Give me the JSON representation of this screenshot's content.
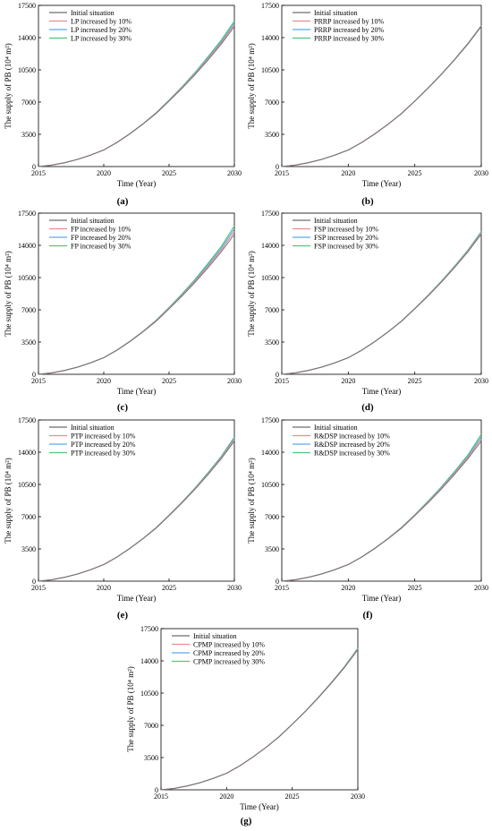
{
  "colors": {
    "initial": "#6e6e6e",
    "inc10": "#f08a8a",
    "inc20": "#5aa6f0",
    "inc30": "#4ccb72"
  },
  "chart_data": [
    {
      "type": "line",
      "panel": "(a)",
      "xlabel": "Time (Year)",
      "ylabel": "The supply of PB (10⁴ m²)",
      "xlim": [
        2015,
        2030
      ],
      "ylim": [
        0,
        17500
      ],
      "xticks": [
        2015,
        2020,
        2025,
        2030
      ],
      "yticks": [
        0,
        3500,
        7000,
        10500,
        14000,
        17500
      ],
      "legend_position": "top-left",
      "grid": false,
      "x": [
        2015,
        2016,
        2017,
        2018,
        2019,
        2020,
        2021,
        2022,
        2023,
        2024,
        2025,
        2026,
        2027,
        2028,
        2029,
        2030
      ],
      "series": [
        {
          "name": "Initial situation",
          "values": [
            0,
            150,
            420,
            780,
            1250,
            1800,
            2600,
            3550,
            4600,
            5750,
            7100,
            8500,
            10000,
            11600,
            13300,
            15200
          ]
        },
        {
          "name": "LP increased by 10%",
          "values": [
            0,
            150,
            420,
            780,
            1250,
            1800,
            2600,
            3560,
            4620,
            5780,
            7140,
            8560,
            10080,
            11720,
            13450,
            15400
          ]
        },
        {
          "name": "LP increased by 20%",
          "values": [
            0,
            150,
            420,
            780,
            1250,
            1800,
            2610,
            3570,
            4640,
            5810,
            7180,
            8620,
            10160,
            11840,
            13600,
            15600
          ]
        },
        {
          "name": "LP increased by 30%",
          "values": [
            0,
            150,
            420,
            780,
            1250,
            1810,
            2620,
            3580,
            4660,
            5840,
            7220,
            8680,
            10240,
            11960,
            13750,
            15800
          ]
        }
      ]
    },
    {
      "type": "line",
      "panel": "(b)",
      "xlabel": "Time (Year)",
      "ylabel": "The supply of PB (10⁴ m²)",
      "xlim": [
        2015,
        2030
      ],
      "ylim": [
        0,
        17500
      ],
      "xticks": [
        2015,
        2020,
        2025,
        2030
      ],
      "yticks": [
        0,
        3500,
        7000,
        10500,
        14000,
        17500
      ],
      "legend_position": "top-left",
      "grid": false,
      "x": [
        2015,
        2016,
        2017,
        2018,
        2019,
        2020,
        2021,
        2022,
        2023,
        2024,
        2025,
        2026,
        2027,
        2028,
        2029,
        2030
      ],
      "series": [
        {
          "name": "Initial situation",
          "values": [
            0,
            150,
            420,
            780,
            1250,
            1800,
            2600,
            3550,
            4600,
            5750,
            7100,
            8500,
            10000,
            11600,
            13300,
            15200
          ]
        },
        {
          "name": "PRRP increased by 10%",
          "values": [
            0,
            150,
            420,
            780,
            1250,
            1800,
            2600,
            3550,
            4600,
            5755,
            7105,
            8510,
            10015,
            11620,
            13330,
            15240
          ]
        },
        {
          "name": "PRRP increased by 20%",
          "values": [
            0,
            150,
            420,
            780,
            1250,
            1800,
            2600,
            3555,
            4605,
            5760,
            7110,
            8520,
            10030,
            11640,
            13360,
            15280
          ]
        },
        {
          "name": "PRRP increased by 30%",
          "values": [
            0,
            150,
            420,
            780,
            1250,
            1800,
            2605,
            3560,
            4610,
            5765,
            7120,
            8530,
            10045,
            11660,
            13390,
            15320
          ]
        }
      ]
    },
    {
      "type": "line",
      "panel": "(c)",
      "xlabel": "Time (Year)",
      "ylabel": "The supply of PB (10⁴ m²)",
      "xlim": [
        2015,
        2030
      ],
      "ylim": [
        0,
        17500
      ],
      "xticks": [
        2015,
        2020,
        2025,
        2030
      ],
      "yticks": [
        0,
        3500,
        7000,
        10500,
        14000,
        17500
      ],
      "legend_position": "top-left",
      "grid": false,
      "x": [
        2015,
        2016,
        2017,
        2018,
        2019,
        2020,
        2021,
        2022,
        2023,
        2024,
        2025,
        2026,
        2027,
        2028,
        2029,
        2030
      ],
      "series": [
        {
          "name": "Initial situation",
          "values": [
            0,
            150,
            420,
            780,
            1250,
            1800,
            2600,
            3550,
            4600,
            5750,
            7100,
            8500,
            10000,
            11600,
            13300,
            15200
          ]
        },
        {
          "name": "FP increased by 10%",
          "values": [
            0,
            150,
            420,
            780,
            1250,
            1805,
            2610,
            3565,
            4625,
            5790,
            7155,
            8585,
            10110,
            11760,
            13500,
            15500
          ]
        },
        {
          "name": "FP increased by 20%",
          "values": [
            0,
            150,
            420,
            780,
            1255,
            1810,
            2620,
            3580,
            4650,
            5830,
            7210,
            8670,
            10220,
            11920,
            13700,
            15800
          ]
        },
        {
          "name": "FP increased by 30%",
          "values": [
            0,
            150,
            420,
            785,
            1260,
            1815,
            2630,
            3595,
            4675,
            5870,
            7265,
            8755,
            10330,
            12080,
            13900,
            16100
          ]
        }
      ]
    },
    {
      "type": "line",
      "panel": "(d)",
      "xlabel": "Time (Year)",
      "ylabel": "The supply of PB (10⁴ m²)",
      "xlim": [
        2015,
        2030
      ],
      "ylim": [
        0,
        17500
      ],
      "xticks": [
        2015,
        2020,
        2025,
        2030
      ],
      "yticks": [
        0,
        3500,
        7000,
        10500,
        14000,
        17500
      ],
      "legend_position": "top-left",
      "grid": false,
      "x": [
        2015,
        2016,
        2017,
        2018,
        2019,
        2020,
        2021,
        2022,
        2023,
        2024,
        2025,
        2026,
        2027,
        2028,
        2029,
        2030
      ],
      "series": [
        {
          "name": "Initial situation",
          "values": [
            0,
            150,
            420,
            780,
            1250,
            1800,
            2600,
            3550,
            4600,
            5750,
            7100,
            8500,
            10000,
            11600,
            13300,
            15200
          ]
        },
        {
          "name": "FSP increased by 10%",
          "values": [
            0,
            150,
            420,
            780,
            1250,
            1800,
            2605,
            3555,
            4610,
            5765,
            7120,
            8530,
            10040,
            11655,
            13370,
            15300
          ]
        },
        {
          "name": "FSP increased by 20%",
          "values": [
            0,
            150,
            420,
            780,
            1250,
            1800,
            2610,
            3560,
            4620,
            5780,
            7140,
            8560,
            10080,
            11710,
            13440,
            15400
          ]
        },
        {
          "name": "FSP increased by 30%",
          "values": [
            0,
            150,
            420,
            780,
            1250,
            1805,
            2615,
            3565,
            4630,
            5795,
            7160,
            8590,
            10120,
            11765,
            13510,
            15500
          ]
        }
      ]
    },
    {
      "type": "line",
      "panel": "(e)",
      "xlabel": "Time (Year)",
      "ylabel": "The supply of PB (10⁴ m²)",
      "xlim": [
        2015,
        2030
      ],
      "ylim": [
        0,
        17500
      ],
      "xticks": [
        2015,
        2020,
        2025,
        2030
      ],
      "yticks": [
        0,
        3500,
        7000,
        10500,
        14000,
        17500
      ],
      "legend_position": "top-left",
      "grid": false,
      "x": [
        2015,
        2016,
        2017,
        2018,
        2019,
        2020,
        2021,
        2022,
        2023,
        2024,
        2025,
        2026,
        2027,
        2028,
        2029,
        2030
      ],
      "series": [
        {
          "name": "Initial situation",
          "values": [
            0,
            150,
            420,
            780,
            1250,
            1800,
            2600,
            3550,
            4600,
            5750,
            7100,
            8500,
            10000,
            11600,
            13300,
            15200
          ]
        },
        {
          "name": "PTP increased by 10%",
          "values": [
            0,
            150,
            420,
            780,
            1250,
            1800,
            2605,
            3555,
            4610,
            5770,
            7125,
            8540,
            10050,
            11670,
            13390,
            15350
          ]
        },
        {
          "name": "PTP increased by 20%",
          "values": [
            0,
            150,
            420,
            780,
            1250,
            1805,
            2610,
            3565,
            4625,
            5790,
            7150,
            8580,
            10100,
            11740,
            13480,
            15500
          ]
        },
        {
          "name": "PTP increased by 30%",
          "values": [
            0,
            150,
            420,
            780,
            1255,
            1810,
            2620,
            3575,
            4640,
            5810,
            7180,
            8620,
            10150,
            11810,
            13570,
            15650
          ]
        }
      ]
    },
    {
      "type": "line",
      "panel": "(f)",
      "xlabel": "Time (Year)",
      "ylabel": "The supply of PB (10⁴ m²)",
      "xlim": [
        2015,
        2030
      ],
      "ylim": [
        0,
        17500
      ],
      "xticks": [
        2015,
        2020,
        2025,
        2030
      ],
      "yticks": [
        0,
        3500,
        7000,
        10500,
        14000,
        17500
      ],
      "legend_position": "top-left",
      "grid": false,
      "x": [
        2015,
        2016,
        2017,
        2018,
        2019,
        2020,
        2021,
        2022,
        2023,
        2024,
        2025,
        2026,
        2027,
        2028,
        2029,
        2030
      ],
      "series": [
        {
          "name": "Initial situation",
          "values": [
            0,
            150,
            420,
            780,
            1250,
            1800,
            2600,
            3550,
            4600,
            5750,
            7100,
            8500,
            10000,
            11600,
            13300,
            15200
          ]
        },
        {
          "name": "R&DSP increased by 10%",
          "values": [
            0,
            150,
            420,
            780,
            1250,
            1805,
            2610,
            3560,
            4620,
            5780,
            7140,
            8565,
            10080,
            11710,
            13440,
            15450
          ]
        },
        {
          "name": "R&DSP increased by 20%",
          "values": [
            0,
            150,
            420,
            780,
            1255,
            1810,
            2620,
            3575,
            4640,
            5810,
            7180,
            8630,
            10160,
            11820,
            13580,
            15700
          ]
        },
        {
          "name": "R&DSP increased by 30%",
          "values": [
            0,
            150,
            420,
            785,
            1260,
            1815,
            2630,
            3590,
            4660,
            5840,
            7220,
            8695,
            10240,
            11930,
            13720,
            15950
          ]
        }
      ]
    },
    {
      "type": "line",
      "panel": "(g)",
      "xlabel": "Time (Year)",
      "ylabel": "The supply of PB (10⁴ m²)",
      "xlim": [
        2015,
        2030
      ],
      "ylim": [
        0,
        17500
      ],
      "xticks": [
        2015,
        2020,
        2025,
        2030
      ],
      "yticks": [
        0,
        3500,
        7000,
        10500,
        14000,
        17500
      ],
      "legend_position": "top-left",
      "grid": false,
      "x": [
        2015,
        2016,
        2017,
        2018,
        2019,
        2020,
        2021,
        2022,
        2023,
        2024,
        2025,
        2026,
        2027,
        2028,
        2029,
        2030
      ],
      "series": [
        {
          "name": "Initial situation",
          "values": [
            0,
            150,
            420,
            780,
            1250,
            1800,
            2600,
            3550,
            4600,
            5750,
            7100,
            8500,
            10000,
            11600,
            13300,
            15200
          ]
        },
        {
          "name": "CPMP increased by 10%",
          "values": [
            0,
            150,
            420,
            780,
            1250,
            1800,
            2602,
            3552,
            4605,
            5758,
            7110,
            8515,
            10020,
            11630,
            13340,
            15260
          ]
        },
        {
          "name": "CPMP increased by 20%",
          "values": [
            0,
            150,
            420,
            780,
            1250,
            1800,
            2605,
            3555,
            4610,
            5765,
            7120,
            8530,
            10040,
            11660,
            13380,
            15320
          ]
        },
        {
          "name": "CPMP increased by 30%",
          "values": [
            0,
            150,
            420,
            780,
            1250,
            1802,
            2607,
            3558,
            4615,
            5772,
            7130,
            8545,
            10060,
            11690,
            13420,
            15380
          ]
        }
      ]
    }
  ]
}
